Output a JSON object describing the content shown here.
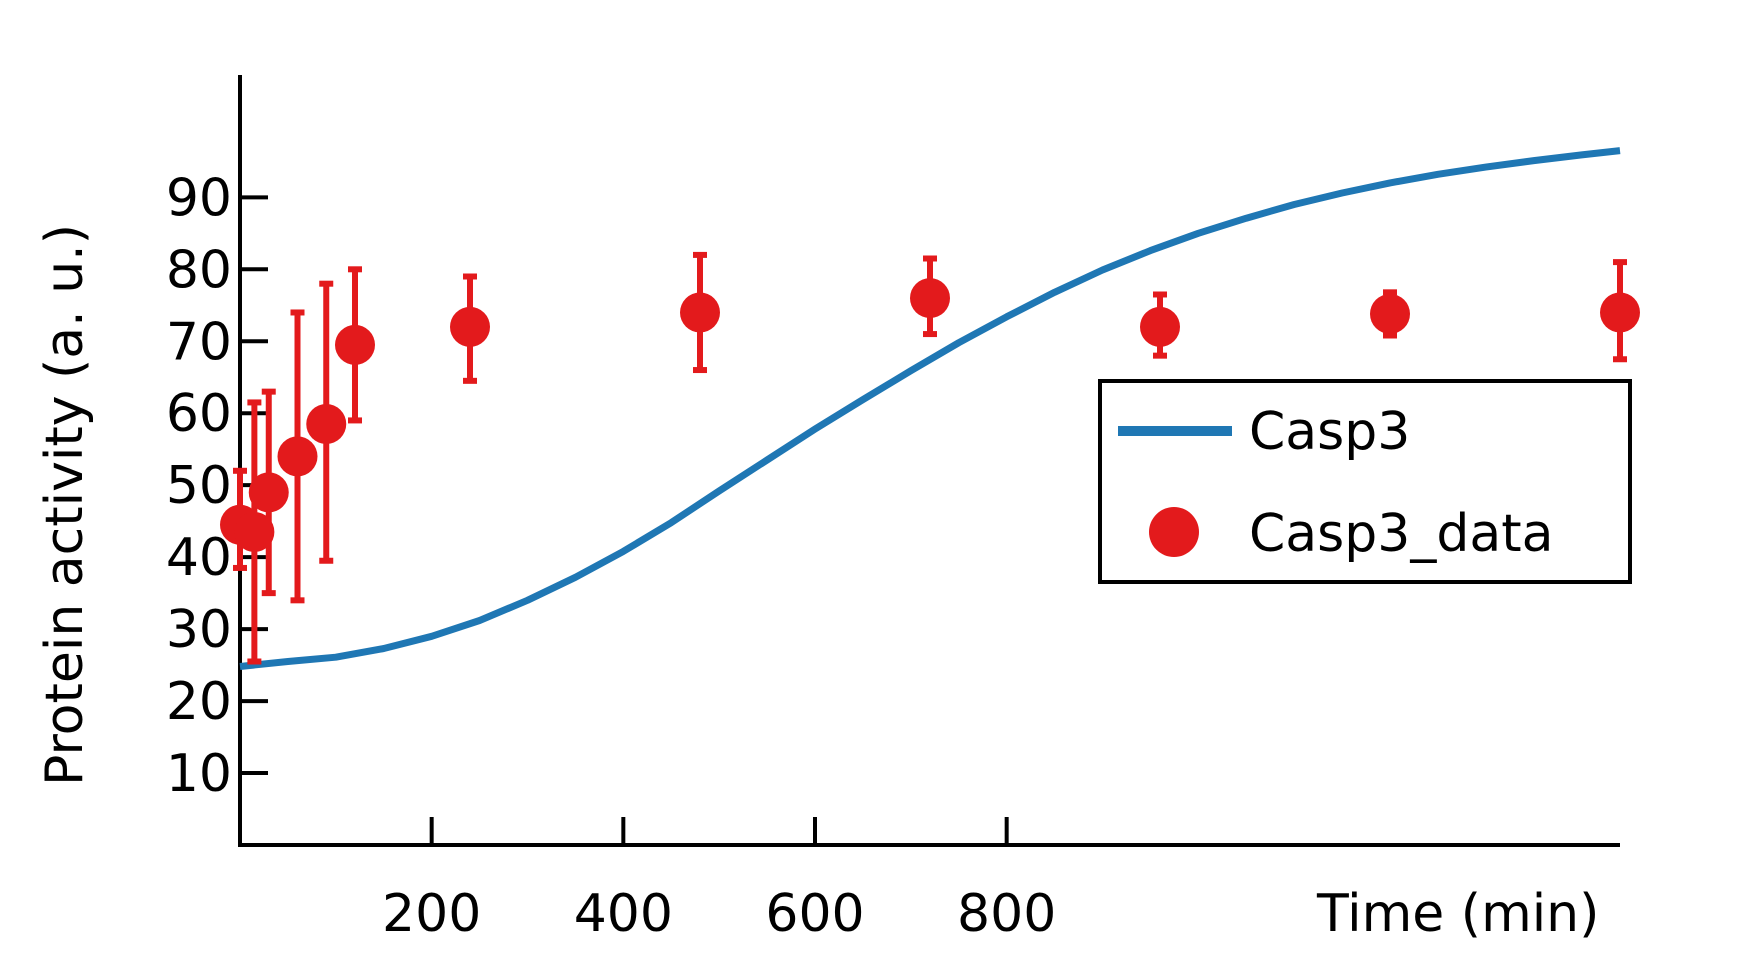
{
  "chart_data": {
    "type": "line",
    "xlabel": "Time (min)",
    "ylabel": "Protein activity (a. u.)",
    "xlim": [
      0,
      1440
    ],
    "ylim": [
      0,
      107
    ],
    "x_ticks": [
      200,
      400,
      600,
      800
    ],
    "y_ticks": [
      10,
      20,
      30,
      40,
      50,
      60,
      70,
      80,
      90
    ],
    "grid": false,
    "legend_position": "right",
    "series": [
      {
        "name": "Casp3",
        "kind": "line",
        "color": "#1f77b4",
        "x": [
          0,
          50,
          100,
          150,
          200,
          250,
          300,
          350,
          400,
          450,
          500,
          550,
          600,
          650,
          700,
          750,
          800,
          850,
          900,
          950,
          1000,
          1050,
          1100,
          1150,
          1200,
          1250,
          1300,
          1350,
          1400,
          1440
        ],
        "y": [
          24.8,
          25.5,
          26.1,
          27.3,
          29.0,
          31.2,
          34.0,
          37.2,
          40.8,
          44.8,
          49.2,
          53.5,
          57.8,
          61.9,
          65.9,
          69.8,
          73.4,
          76.8,
          79.9,
          82.6,
          85.0,
          87.1,
          89.0,
          90.6,
          92.0,
          93.2,
          94.2,
          95.1,
          95.9,
          96.5
        ]
      },
      {
        "name": "Casp3_data",
        "kind": "scatter",
        "color": "#e31a1c",
        "points": [
          {
            "x": 0,
            "y": 44.5,
            "lo": 38.5,
            "hi": 52.0
          },
          {
            "x": 15,
            "y": 43.5,
            "lo": 25.5,
            "hi": 61.5
          },
          {
            "x": 30,
            "y": 49.0,
            "lo": 35.0,
            "hi": 63.0
          },
          {
            "x": 60,
            "y": 54.0,
            "lo": 34.0,
            "hi": 74.0
          },
          {
            "x": 90,
            "y": 58.5,
            "lo": 39.5,
            "hi": 78.0
          },
          {
            "x": 120,
            "y": 69.5,
            "lo": 59.0,
            "hi": 80.0
          },
          {
            "x": 240,
            "y": 72.0,
            "lo": 64.5,
            "hi": 79.0
          },
          {
            "x": 480,
            "y": 74.0,
            "lo": 66.0,
            "hi": 82.0
          },
          {
            "x": 720,
            "y": 76.0,
            "lo": 71.0,
            "hi": 81.5
          },
          {
            "x": 960,
            "y": 72.0,
            "lo": 68.0,
            "hi": 76.5
          },
          {
            "x": 1200,
            "y": 73.8,
            "lo": 70.8,
            "hi": 76.8
          },
          {
            "x": 1440,
            "y": 74.0,
            "lo": 67.5,
            "hi": 81.0
          }
        ]
      }
    ]
  }
}
